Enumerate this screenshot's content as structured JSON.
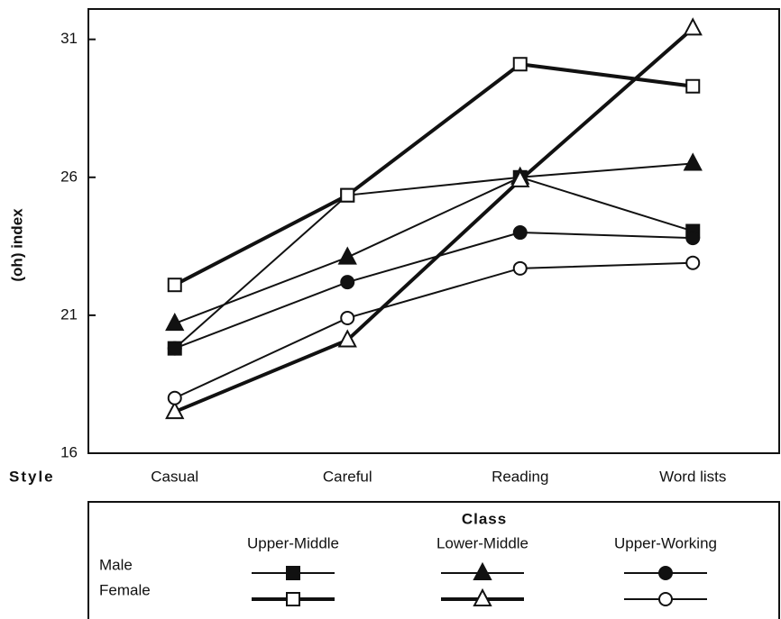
{
  "chart_data": {
    "type": "line",
    "x_label": "Style",
    "y_label": "(oh) index",
    "categories": [
      "Casual",
      "Careful",
      "Reading",
      "Word lists"
    ],
    "ylim": [
      16,
      32.1
    ],
    "yticks": [
      16,
      21,
      26,
      31
    ],
    "legend": {
      "title": "Class",
      "classes": [
        "Upper-Middle",
        "Lower-Middle",
        "Upper-Working"
      ],
      "sexes": [
        "Male",
        "Female"
      ]
    },
    "series": [
      {
        "marker": "square",
        "filled": true,
        "thick": false,
        "color": "#111",
        "values": [
          19.8,
          25.35,
          26.0,
          24.05
        ]
      },
      {
        "marker": "square",
        "filled": false,
        "thick": true,
        "color": "#111",
        "values": [
          22.1,
          25.35,
          30.1,
          29.3
        ]
      },
      {
        "marker": "triangle",
        "filled": true,
        "thick": false,
        "color": "#111",
        "values": [
          20.7,
          23.1,
          26.0,
          26.5
        ]
      },
      {
        "marker": "triangle",
        "filled": false,
        "thick": true,
        "color": "#111",
        "values": [
          17.5,
          20.1,
          25.9,
          31.4
        ]
      },
      {
        "marker": "circle",
        "filled": true,
        "thick": false,
        "color": "#111",
        "values": [
          19.8,
          22.2,
          24.0,
          23.8
        ]
      },
      {
        "marker": "circle",
        "filled": false,
        "thick": false,
        "color": "#111",
        "values": [
          18.0,
          20.9,
          22.7,
          22.9
        ]
      }
    ]
  }
}
